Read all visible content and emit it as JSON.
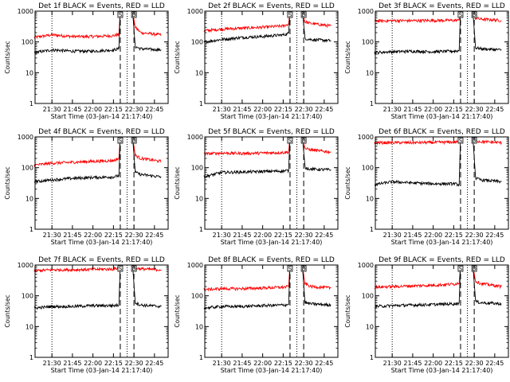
{
  "chart_data": [
    {
      "type": "line",
      "title": "Det 1f BLACK = Events, RED = LLD",
      "xlabel": "Start Time (03-Jan-14 21:17:40)",
      "ylabel": "Counts/sec",
      "y_scale": "log",
      "ylim": [
        1,
        1000
      ],
      "xlim": [
        "21:17:40",
        "22:55"
      ],
      "x_tick_labels": [
        "21:30",
        "21:45",
        "22:00",
        "22:15",
        "22:30",
        "22:45"
      ],
      "y_tick_labels": [
        "1",
        "10",
        "100",
        "1000"
      ],
      "attenuator_markers": [
        {
          "label": "S",
          "time": "22:20"
        },
        {
          "label": "D",
          "time": "22:30"
        }
      ],
      "dotted_lines": [
        "21:30",
        "22:25"
      ],
      "dashed_lines": [
        "22:20",
        "22:30"
      ],
      "series": [
        {
          "color": "#ff0000",
          "time": [
            "21:17",
            "21:30",
            "21:45",
            "22:00",
            "22:15",
            "22:19",
            "22:20",
            "22:29",
            "22:31",
            "22:35",
            "22:50"
          ],
          "values": [
            140,
            170,
            150,
            150,
            160,
            175,
            1000,
            1000,
            300,
            200,
            170
          ]
        },
        {
          "color": "#000000",
          "time": [
            "21:17",
            "21:30",
            "21:45",
            "22:00",
            "22:15",
            "22:19",
            "22:20",
            "22:29",
            "22:31",
            "22:35",
            "22:50"
          ],
          "values": [
            45,
            55,
            50,
            50,
            55,
            60,
            1000,
            1000,
            70,
            60,
            55
          ]
        }
      ]
    },
    {
      "type": "line",
      "title": "Det 2f BLACK = Events, RED = LLD",
      "xlabel": "Start Time (03-Jan-14 21:17:40)",
      "ylabel": "Counts/sec",
      "y_scale": "log",
      "ylim": [
        1,
        1000
      ],
      "xlim": [
        "21:17:40",
        "22:55"
      ],
      "x_tick_labels": [
        "21:30",
        "21:45",
        "22:00",
        "22:15",
        "22:30",
        "22:45"
      ],
      "y_tick_labels": [
        "1",
        "10",
        "100",
        "1000"
      ],
      "attenuator_markers": [
        {
          "label": "S",
          "time": "22:20"
        },
        {
          "label": "D",
          "time": "22:30"
        }
      ],
      "dotted_lines": [
        "21:30",
        "22:25"
      ],
      "dashed_lines": [
        "22:20",
        "22:30"
      ],
      "series": [
        {
          "color": "#ff0000",
          "time": [
            "21:17",
            "21:30",
            "21:45",
            "22:00",
            "22:15",
            "22:19",
            "22:20",
            "22:29",
            "22:31",
            "22:35",
            "22:50"
          ],
          "values": [
            230,
            260,
            280,
            300,
            330,
            380,
            1000,
            1000,
            450,
            400,
            330
          ]
        },
        {
          "color": "#000000",
          "time": [
            "21:17",
            "21:30",
            "21:45",
            "22:00",
            "22:15",
            "22:19",
            "22:20",
            "22:29",
            "22:31",
            "22:35",
            "22:50"
          ],
          "values": [
            100,
            120,
            140,
            150,
            170,
            190,
            1000,
            1000,
            130,
            120,
            110
          ]
        }
      ]
    },
    {
      "type": "line",
      "title": "Det 3f BLACK = Events, RED = LLD",
      "xlabel": "Start Time (03-Jan-14 21:17:40)",
      "ylabel": "Counts/sec",
      "y_scale": "log",
      "ylim": [
        1,
        1000
      ],
      "xlim": [
        "21:17:40",
        "22:55"
      ],
      "x_tick_labels": [
        "21:30",
        "21:45",
        "22:00",
        "22:15",
        "22:30",
        "22:45"
      ],
      "y_tick_labels": [
        "1",
        "10",
        "100",
        "1000"
      ],
      "attenuator_markers": [
        {
          "label": "S",
          "time": "22:20"
        },
        {
          "label": "D",
          "time": "22:30"
        }
      ],
      "dotted_lines": [
        "21:30",
        "22:25"
      ],
      "dashed_lines": [
        "22:20",
        "22:30"
      ],
      "series": [
        {
          "color": "#ff0000",
          "time": [
            "21:17",
            "21:30",
            "21:45",
            "22:00",
            "22:15",
            "22:19",
            "22:20",
            "22:29",
            "22:31",
            "22:35",
            "22:50"
          ],
          "values": [
            480,
            490,
            490,
            500,
            500,
            510,
            1000,
            1000,
            600,
            550,
            500
          ]
        },
        {
          "color": "#000000",
          "time": [
            "21:17",
            "21:30",
            "21:45",
            "22:00",
            "22:15",
            "22:19",
            "22:20",
            "22:29",
            "22:31",
            "22:35",
            "22:50"
          ],
          "values": [
            45,
            48,
            50,
            48,
            50,
            52,
            1000,
            1000,
            65,
            60,
            55
          ]
        }
      ]
    },
    {
      "type": "line",
      "title": "Det 4f BLACK = Events, RED = LLD",
      "xlabel": "Start Time (03-Jan-14 21:17:40)",
      "ylabel": "Counts/sec",
      "y_scale": "log",
      "ylim": [
        1,
        1000
      ],
      "xlim": [
        "21:17:40",
        "22:55"
      ],
      "x_tick_labels": [
        "21:30",
        "21:45",
        "22:00",
        "22:15",
        "22:30",
        "22:45"
      ],
      "y_tick_labels": [
        "1",
        "10",
        "100",
        "1000"
      ],
      "attenuator_markers": [
        {
          "label": "S",
          "time": "22:20"
        },
        {
          "label": "D",
          "time": "22:30"
        }
      ],
      "dotted_lines": [
        "21:30",
        "22:25"
      ],
      "dashed_lines": [
        "22:20",
        "22:30"
      ],
      "series": [
        {
          "color": "#ff0000",
          "time": [
            "21:17",
            "21:30",
            "21:45",
            "22:00",
            "22:15",
            "22:19",
            "22:20",
            "22:29",
            "22:31",
            "22:35",
            "22:50"
          ],
          "values": [
            120,
            140,
            150,
            160,
            170,
            200,
            1000,
            1000,
            250,
            200,
            160
          ]
        },
        {
          "color": "#000000",
          "time": [
            "21:17",
            "21:30",
            "21:45",
            "22:00",
            "22:15",
            "22:19",
            "22:20",
            "22:29",
            "22:31",
            "22:35",
            "22:50"
          ],
          "values": [
            35,
            40,
            45,
            48,
            50,
            55,
            1000,
            1000,
            70,
            60,
            50
          ]
        }
      ]
    },
    {
      "type": "line",
      "title": "Det 5f BLACK = Events, RED = LLD",
      "xlabel": "Start Time (03-Jan-14 21:17:40)",
      "ylabel": "Counts/sec",
      "y_scale": "log",
      "ylim": [
        1,
        1000
      ],
      "xlim": [
        "21:17:40",
        "22:55"
      ],
      "x_tick_labels": [
        "21:30",
        "21:45",
        "22:00",
        "22:15",
        "22:30",
        "22:45"
      ],
      "y_tick_labels": [
        "1",
        "10",
        "100",
        "1000"
      ],
      "attenuator_markers": [
        {
          "label": "S",
          "time": "22:20"
        },
        {
          "label": "D",
          "time": "22:30"
        }
      ],
      "dotted_lines": [
        "21:30",
        "22:25"
      ],
      "dashed_lines": [
        "22:20",
        "22:30"
      ],
      "series": [
        {
          "color": "#ff0000",
          "time": [
            "21:17",
            "21:30",
            "21:45",
            "22:00",
            "22:15",
            "22:19",
            "22:20",
            "22:29",
            "22:31",
            "22:35",
            "22:50"
          ],
          "values": [
            280,
            300,
            290,
            300,
            310,
            320,
            1000,
            1000,
            420,
            380,
            320
          ]
        },
        {
          "color": "#000000",
          "time": [
            "21:17",
            "21:30",
            "21:45",
            "22:00",
            "22:15",
            "22:19",
            "22:20",
            "22:29",
            "22:31",
            "22:35",
            "22:50"
          ],
          "values": [
            50,
            70,
            72,
            75,
            78,
            80,
            1000,
            1000,
            100,
            90,
            85
          ]
        }
      ]
    },
    {
      "type": "line",
      "title": "Det 6f BLACK = Events, RED = LLD",
      "xlabel": "Start Time (03-Jan-14 21:17:40)",
      "ylabel": "Counts/sec",
      "y_scale": "log",
      "ylim": [
        1,
        1000
      ],
      "xlim": [
        "21:17:40",
        "22:55"
      ],
      "x_tick_labels": [
        "21:30",
        "21:45",
        "22:00",
        "22:15",
        "22:30",
        "22:45"
      ],
      "y_tick_labels": [
        "1",
        "10",
        "100",
        "1000"
      ],
      "attenuator_markers": [
        {
          "label": "S",
          "time": "22:20"
        },
        {
          "label": "D",
          "time": "22:30"
        }
      ],
      "dotted_lines": [
        "21:30",
        "22:25"
      ],
      "dashed_lines": [
        "22:20",
        "22:30"
      ],
      "series": [
        {
          "color": "#ff0000",
          "time": [
            "21:17",
            "21:30",
            "21:45",
            "22:00",
            "22:15",
            "22:19",
            "22:20",
            "22:29",
            "22:31",
            "22:35",
            "22:50"
          ],
          "values": [
            650,
            650,
            650,
            660,
            680,
            700,
            1000,
            1000,
            750,
            700,
            650
          ]
        },
        {
          "color": "#000000",
          "time": [
            "21:17",
            "21:30",
            "21:45",
            "22:00",
            "22:15",
            "22:19",
            "22:20",
            "22:29",
            "22:31",
            "22:35",
            "22:50"
          ],
          "values": [
            28,
            35,
            32,
            30,
            30,
            28,
            1000,
            1000,
            45,
            40,
            35
          ]
        }
      ]
    },
    {
      "type": "line",
      "title": "Det 7f BLACK = Events, RED = LLD",
      "xlabel": "Start Time (03-Jan-14 21:17:40)",
      "ylabel": "Counts/sec",
      "y_scale": "log",
      "ylim": [
        1,
        1000
      ],
      "xlim": [
        "21:17:40",
        "22:55"
      ],
      "x_tick_labels": [
        "21:30",
        "21:45",
        "22:00",
        "22:15",
        "22:30",
        "22:45"
      ],
      "y_tick_labels": [
        "1",
        "10",
        "100",
        "1000"
      ],
      "attenuator_markers": [
        {
          "label": "S",
          "time": "22:20"
        },
        {
          "label": "D",
          "time": "22:30"
        }
      ],
      "dotted_lines": [
        "21:30",
        "22:25"
      ],
      "dashed_lines": [
        "22:20",
        "22:30"
      ],
      "series": [
        {
          "color": "#ff0000",
          "time": [
            "21:17",
            "21:30",
            "21:45",
            "22:00",
            "22:15",
            "22:19",
            "22:20",
            "22:29",
            "22:31",
            "22:35",
            "22:50"
          ],
          "values": [
            650,
            700,
            700,
            720,
            740,
            800,
            1000,
            1000,
            800,
            750,
            700
          ]
        },
        {
          "color": "#000000",
          "time": [
            "21:17",
            "21:30",
            "21:45",
            "22:00",
            "22:15",
            "22:19",
            "22:20",
            "22:29",
            "22:31",
            "22:35",
            "22:50"
          ],
          "values": [
            40,
            45,
            45,
            48,
            48,
            50,
            1000,
            1000,
            60,
            50,
            45
          ]
        }
      ]
    },
    {
      "type": "line",
      "title": "Det 8f BLACK = Events, RED = LLD",
      "xlabel": "Start Time (03-Jan-14 21:17:40)",
      "ylabel": "Counts/sec",
      "y_scale": "log",
      "ylim": [
        1,
        1000
      ],
      "xlim": [
        "21:17:40",
        "22:55"
      ],
      "x_tick_labels": [
        "21:30",
        "21:45",
        "22:00",
        "22:15",
        "22:30",
        "22:45"
      ],
      "y_tick_labels": [
        "1",
        "10",
        "100",
        "1000"
      ],
      "attenuator_markers": [
        {
          "label": "S",
          "time": "22:20"
        },
        {
          "label": "D",
          "time": "22:30"
        }
      ],
      "dotted_lines": [
        "21:30",
        "22:25"
      ],
      "dashed_lines": [
        "22:20",
        "22:30"
      ],
      "series": [
        {
          "color": "#ff0000",
          "time": [
            "21:17",
            "21:30",
            "21:45",
            "22:00",
            "22:15",
            "22:19",
            "22:20",
            "22:29",
            "22:31",
            "22:35",
            "22:50"
          ],
          "values": [
            160,
            170,
            170,
            180,
            190,
            200,
            1000,
            1000,
            250,
            200,
            180
          ]
        },
        {
          "color": "#000000",
          "time": [
            "21:17",
            "21:30",
            "21:45",
            "22:00",
            "22:15",
            "22:19",
            "22:20",
            "22:29",
            "22:31",
            "22:35",
            "22:50"
          ],
          "values": [
            40,
            45,
            45,
            48,
            50,
            52,
            1000,
            1000,
            60,
            55,
            50
          ]
        }
      ]
    },
    {
      "type": "line",
      "title": "Det 9f BLACK = Events, RED = LLD",
      "xlabel": "Start Time (03-Jan-14 21:17:40)",
      "ylabel": "Counts/sec",
      "y_scale": "log",
      "ylim": [
        1,
        1000
      ],
      "xlim": [
        "21:17:40",
        "22:55"
      ],
      "x_tick_labels": [
        "21:30",
        "21:45",
        "22:00",
        "22:15",
        "22:30",
        "22:45"
      ],
      "y_tick_labels": [
        "1",
        "10",
        "100",
        "1000"
      ],
      "attenuator_markers": [
        {
          "label": "S",
          "time": "22:20"
        },
        {
          "label": "D",
          "time": "22:30"
        }
      ],
      "dotted_lines": [
        "21:30",
        "22:25"
      ],
      "dashed_lines": [
        "22:20",
        "22:30"
      ],
      "series": [
        {
          "color": "#ff0000",
          "time": [
            "21:17",
            "21:30",
            "21:45",
            "22:00",
            "22:15",
            "22:19",
            "22:20",
            "22:29",
            "22:31",
            "22:35",
            "22:50"
          ],
          "values": [
            190,
            200,
            210,
            220,
            240,
            260,
            1000,
            1000,
            300,
            250,
            200
          ]
        },
        {
          "color": "#000000",
          "time": [
            "21:17",
            "21:30",
            "21:45",
            "22:00",
            "22:15",
            "22:19",
            "22:20",
            "22:29",
            "22:31",
            "22:35",
            "22:50"
          ],
          "values": [
            45,
            48,
            50,
            52,
            55,
            58,
            1000,
            1000,
            65,
            60,
            55
          ]
        }
      ]
    }
  ]
}
